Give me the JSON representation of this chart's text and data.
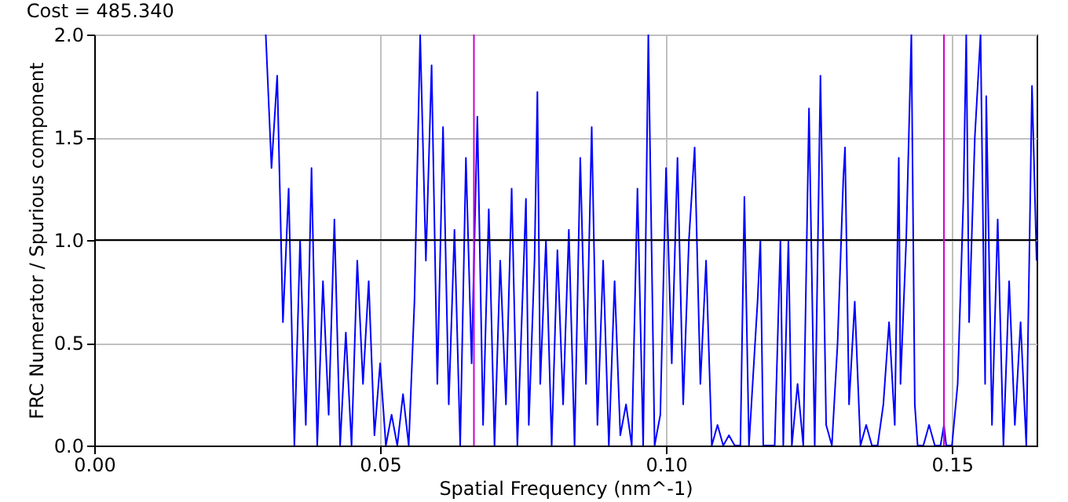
{
  "chart_data": {
    "type": "line",
    "title": "Cost = 485.340",
    "xlabel": "Spatial Frequency (nm^-1)",
    "ylabel": "FRC Numerator / Spurious component",
    "xlim": [
      0,
      0.1648
    ],
    "ylim": [
      0,
      2.0
    ],
    "xticks": [
      {
        "value": 0,
        "label": "0.00"
      },
      {
        "value": 0.05,
        "label": "0.05"
      },
      {
        "value": 0.1,
        "label": "0.10"
      },
      {
        "value": 0.15,
        "label": "0.15"
      }
    ],
    "yticks": [
      {
        "value": 0,
        "label": "0.0"
      },
      {
        "value": 0.5,
        "label": "0.5"
      },
      {
        "value": 1,
        "label": "1.0"
      },
      {
        "value": 1.5,
        "label": "1.5"
      },
      {
        "value": 2,
        "label": "2.0"
      }
    ],
    "grid": true,
    "ref_lines": [
      {
        "axis": "y",
        "value": 1.0,
        "color": "#000000"
      },
      {
        "axis": "x",
        "value": 0.0664,
        "color": "#cc00cc"
      },
      {
        "axis": "x",
        "value": 0.1486,
        "color": "#cc00cc"
      }
    ],
    "series": [
      {
        "color": "#0000ff",
        "x": [
          0.03,
          0.031,
          0.032,
          0.033,
          0.034,
          0.035,
          0.036,
          0.037,
          0.038,
          0.039,
          0.04,
          0.041,
          0.042,
          0.043,
          0.044,
          0.045,
          0.046,
          0.047,
          0.048,
          0.049,
          0.05,
          0.051,
          0.052,
          0.053,
          0.054,
          0.055,
          0.056,
          0.057,
          0.058,
          0.059,
          0.06,
          0.061,
          0.062,
          0.063,
          0.064,
          0.065,
          0.066,
          0.067,
          0.068,
          0.069,
          0.07,
          0.071,
          0.072,
          0.073,
          0.074,
          0.0755,
          0.076,
          0.077,
          0.0775,
          0.078,
          0.079,
          0.08,
          0.081,
          0.082,
          0.083,
          0.084,
          0.085,
          0.086,
          0.087,
          0.088,
          0.089,
          0.09,
          0.091,
          0.092,
          0.093,
          0.094,
          0.095,
          0.096,
          0.0969,
          0.098,
          0.099,
          0.1,
          0.101,
          0.102,
          0.103,
          0.104,
          0.105,
          0.106,
          0.107,
          0.108,
          0.109,
          0.11,
          0.111,
          0.112,
          0.113,
          0.1137,
          0.1145,
          0.116,
          0.1165,
          0.117,
          0.119,
          0.12,
          0.1205,
          0.1214,
          0.122,
          0.123,
          0.124,
          0.125,
          0.126,
          0.127,
          0.128,
          0.129,
          0.13,
          0.131,
          0.1313,
          0.132,
          0.133,
          0.134,
          0.135,
          0.136,
          0.137,
          0.138,
          0.139,
          0.14,
          0.1407,
          0.141,
          0.142,
          0.1429,
          0.1435,
          0.144,
          0.145,
          0.146,
          0.147,
          0.148,
          0.1486,
          0.149,
          0.15,
          0.151,
          0.152,
          0.1525,
          0.153,
          0.154,
          0.155,
          0.1558,
          0.156,
          0.157,
          0.158,
          0.159,
          0.16,
          0.161,
          0.162,
          0.163,
          0.164,
          0.1648
        ],
        "values": [
          2.0,
          1.35,
          1.8,
          0.6,
          1.25,
          0.0,
          1.0,
          0.1,
          1.35,
          0.0,
          0.8,
          0.15,
          1.1,
          0.0,
          0.55,
          0.0,
          0.9,
          0.3,
          0.8,
          0.05,
          0.4,
          0.0,
          0.15,
          0.0,
          0.25,
          0.0,
          0.7,
          2.0,
          0.9,
          1.85,
          0.3,
          1.55,
          0.2,
          1.05,
          0.0,
          1.4,
          0.4,
          1.6,
          0.1,
          1.15,
          0.0,
          0.9,
          0.2,
          1.25,
          0.0,
          1.2,
          0.1,
          0.9,
          1.72,
          0.3,
          1.0,
          0.0,
          0.95,
          0.2,
          1.05,
          0.0,
          1.4,
          0.3,
          1.55,
          0.1,
          0.9,
          0.0,
          0.8,
          0.05,
          0.2,
          0.0,
          1.25,
          0.0,
          2.0,
          0.0,
          0.15,
          1.35,
          0.4,
          1.4,
          0.2,
          1.0,
          1.45,
          0.3,
          0.9,
          0.0,
          0.1,
          0.0,
          0.05,
          0.0,
          0.0,
          1.21,
          0.0,
          0.7,
          1.0,
          0.0,
          0.0,
          1.0,
          0.0,
          1.0,
          0.0,
          0.3,
          0.0,
          1.64,
          0.0,
          1.8,
          0.1,
          0.0,
          0.5,
          1.3,
          1.45,
          0.2,
          0.7,
          0.0,
          0.1,
          0.0,
          0.0,
          0.2,
          0.6,
          0.1,
          1.4,
          0.3,
          1.0,
          2.0,
          0.2,
          0.0,
          0.0,
          0.1,
          0.0,
          0.0,
          0.1,
          0.0,
          0.0,
          0.3,
          1.2,
          2.0,
          0.6,
          1.5,
          2.0,
          0.3,
          1.7,
          0.1,
          1.1,
          0.0,
          0.8,
          0.1,
          0.6,
          0.0,
          1.75,
          0.9
        ]
      }
    ]
  }
}
